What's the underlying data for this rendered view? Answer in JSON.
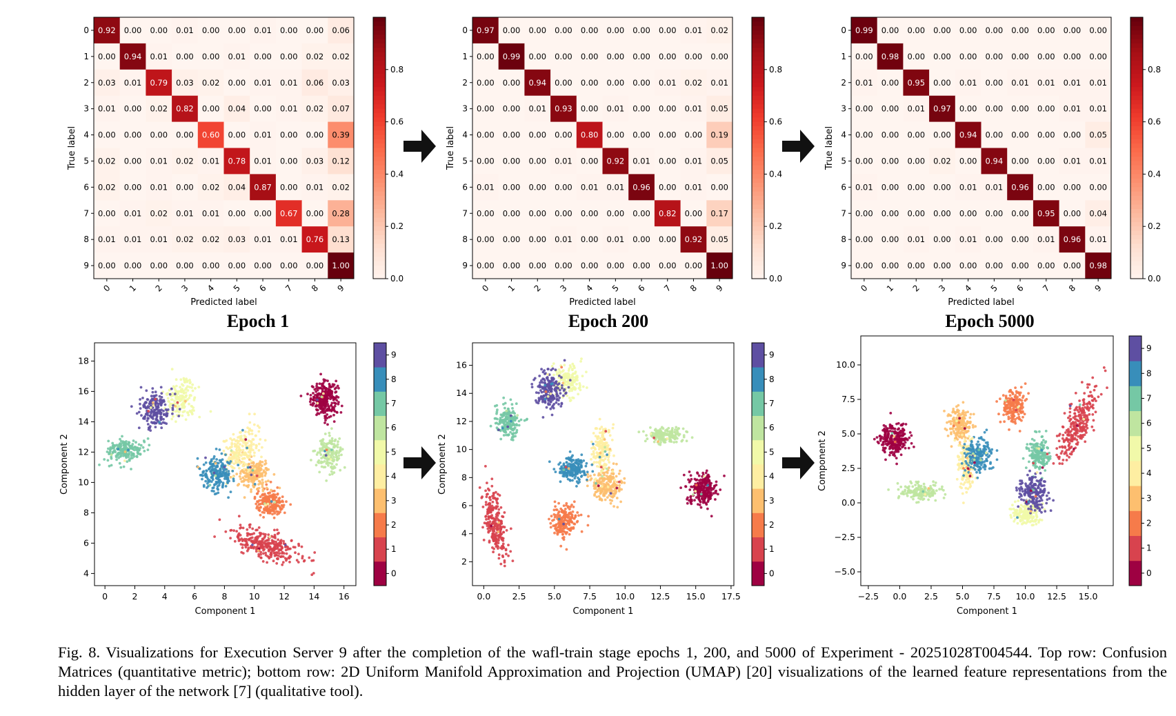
{
  "caption": "Fig. 8.  Visualizations for Execution Server 9 after the completion of the wafl-train stage epochs 1, 200, and 5000 of Experiment - 20251028T004544. Top row: Confusion Matrices (quantitative metric); bottom row: 2D Uniform Manifold Approximation and Projection (UMAP) [20] visualizations of the learned feature representations from the hidden layer of the network [7] (qualitative tool).",
  "colors": {
    "cm_scale": [
      "#fff5f0",
      "#fee0d2",
      "#fcbba1",
      "#fc9272",
      "#fb6a4a",
      "#ef3b2c",
      "#cb181d",
      "#a50f15",
      "#67000d"
    ],
    "umap_scale": [
      "#9e0142",
      "#d53e4f",
      "#f46d43",
      "#fdae61",
      "#fee08b",
      "#ffffbf",
      "#e6f598",
      "#abdda4",
      "#66c2a5",
      "#3288bd",
      "#5e4fa2"
    ],
    "arrow": "#111111"
  },
  "chart_data": [
    {
      "type": "heatmap",
      "title": "Epoch 1",
      "xlabel": "Predicted label",
      "ylabel": "True label",
      "labels": [
        "0",
        "1",
        "2",
        "3",
        "4",
        "5",
        "6",
        "7",
        "8",
        "9"
      ],
      "colorbar_ticks": [
        "0.0",
        "0.2",
        "0.4",
        "0.6",
        "0.8"
      ],
      "matrix": [
        [
          0.92,
          0.0,
          0.0,
          0.01,
          0.0,
          0.0,
          0.01,
          0.0,
          0.0,
          0.06
        ],
        [
          0.0,
          0.94,
          0.01,
          0.0,
          0.0,
          0.01,
          0.0,
          0.0,
          0.02,
          0.02
        ],
        [
          0.03,
          0.01,
          0.79,
          0.03,
          0.02,
          0.0,
          0.01,
          0.01,
          0.06,
          0.03
        ],
        [
          0.01,
          0.0,
          0.02,
          0.82,
          0.0,
          0.04,
          0.0,
          0.01,
          0.02,
          0.07
        ],
        [
          0.0,
          0.0,
          0.0,
          0.0,
          0.6,
          0.0,
          0.01,
          0.0,
          0.0,
          0.39
        ],
        [
          0.02,
          0.0,
          0.01,
          0.02,
          0.01,
          0.78,
          0.01,
          0.0,
          0.03,
          0.12
        ],
        [
          0.02,
          0.0,
          0.01,
          0.0,
          0.02,
          0.04,
          0.87,
          0.0,
          0.01,
          0.02
        ],
        [
          0.0,
          0.01,
          0.02,
          0.01,
          0.01,
          0.0,
          0.0,
          0.67,
          0.0,
          0.28
        ],
        [
          0.01,
          0.01,
          0.01,
          0.02,
          0.02,
          0.03,
          0.01,
          0.01,
          0.76,
          0.13
        ],
        [
          0.0,
          0.0,
          0.0,
          0.0,
          0.0,
          0.0,
          0.0,
          0.0,
          0.0,
          1.0
        ]
      ]
    },
    {
      "type": "heatmap",
      "title": "Epoch 200",
      "xlabel": "Predicted label",
      "ylabel": "True label",
      "labels": [
        "0",
        "1",
        "2",
        "3",
        "4",
        "5",
        "6",
        "7",
        "8",
        "9"
      ],
      "colorbar_ticks": [
        "0.0",
        "0.2",
        "0.4",
        "0.6",
        "0.8"
      ],
      "matrix": [
        [
          0.97,
          0.0,
          0.0,
          0.0,
          0.0,
          0.0,
          0.0,
          0.0,
          0.01,
          0.02
        ],
        [
          0.0,
          0.99,
          0.0,
          0.0,
          0.0,
          0.0,
          0.0,
          0.0,
          0.0,
          0.0
        ],
        [
          0.0,
          0.0,
          0.94,
          0.0,
          0.0,
          0.0,
          0.0,
          0.01,
          0.02,
          0.01
        ],
        [
          0.0,
          0.0,
          0.01,
          0.93,
          0.0,
          0.01,
          0.0,
          0.0,
          0.01,
          0.05
        ],
        [
          0.0,
          0.0,
          0.0,
          0.0,
          0.8,
          0.0,
          0.0,
          0.0,
          0.0,
          0.19
        ],
        [
          0.0,
          0.0,
          0.0,
          0.01,
          0.0,
          0.92,
          0.01,
          0.0,
          0.01,
          0.05
        ],
        [
          0.01,
          0.0,
          0.0,
          0.0,
          0.01,
          0.01,
          0.96,
          0.0,
          0.01,
          0.0
        ],
        [
          0.0,
          0.0,
          0.0,
          0.0,
          0.0,
          0.0,
          0.0,
          0.82,
          0.0,
          0.17
        ],
        [
          0.0,
          0.0,
          0.0,
          0.01,
          0.0,
          0.01,
          0.0,
          0.0,
          0.92,
          0.05
        ],
        [
          0.0,
          0.0,
          0.0,
          0.0,
          0.0,
          0.0,
          0.0,
          0.0,
          0.0,
          1.0
        ]
      ]
    },
    {
      "type": "heatmap",
      "title": "Epoch 5000",
      "xlabel": "Predicted label",
      "ylabel": "True label",
      "labels": [
        "0",
        "1",
        "2",
        "3",
        "4",
        "5",
        "6",
        "7",
        "8",
        "9"
      ],
      "colorbar_ticks": [
        "0.0",
        "0.2",
        "0.4",
        "0.6",
        "0.8"
      ],
      "matrix": [
        [
          0.99,
          0.0,
          0.0,
          0.0,
          0.0,
          0.0,
          0.0,
          0.0,
          0.0,
          0.0
        ],
        [
          0.0,
          0.98,
          0.0,
          0.0,
          0.0,
          0.0,
          0.0,
          0.0,
          0.0,
          0.0
        ],
        [
          0.01,
          0.0,
          0.95,
          0.0,
          0.01,
          0.0,
          0.01,
          0.01,
          0.01,
          0.01
        ],
        [
          0.0,
          0.0,
          0.01,
          0.97,
          0.0,
          0.0,
          0.0,
          0.0,
          0.01,
          0.01
        ],
        [
          0.0,
          0.0,
          0.0,
          0.0,
          0.94,
          0.0,
          0.0,
          0.0,
          0.0,
          0.05
        ],
        [
          0.0,
          0.0,
          0.0,
          0.02,
          0.0,
          0.94,
          0.0,
          0.0,
          0.01,
          0.01
        ],
        [
          0.01,
          0.0,
          0.0,
          0.0,
          0.01,
          0.01,
          0.96,
          0.0,
          0.0,
          0.0
        ],
        [
          0.0,
          0.0,
          0.0,
          0.0,
          0.0,
          0.0,
          0.0,
          0.95,
          0.0,
          0.04
        ],
        [
          0.0,
          0.0,
          0.01,
          0.0,
          0.01,
          0.0,
          0.0,
          0.01,
          0.96,
          0.01
        ],
        [
          0.0,
          0.0,
          0.0,
          0.0,
          0.0,
          0.0,
          0.0,
          0.0,
          0.0,
          0.98
        ]
      ]
    },
    {
      "type": "scatter",
      "xlabel": "Component 1",
      "ylabel": "Component 2",
      "xlim": [
        -0.7,
        16.8
      ],
      "ylim": [
        3.2,
        19.2
      ],
      "xticks": [
        0,
        2,
        4,
        6,
        8,
        10,
        12,
        14,
        16
      ],
      "yticks": [
        4,
        6,
        8,
        10,
        12,
        14,
        16,
        18
      ],
      "colorbar_ticks": [
        "0",
        "1",
        "2",
        "3",
        "4",
        "5",
        "6",
        "7",
        "8",
        "9"
      ],
      "clusters": [
        {
          "class": 0,
          "x": 14.7,
          "y": 15.5,
          "sx": 0.45,
          "sy": 0.55,
          "n": 280
        },
        {
          "class": 1,
          "x": 10.8,
          "y": 5.9,
          "sx": 1.2,
          "sy": 0.45,
          "n": 300,
          "rot": -18
        },
        {
          "class": 2,
          "x": 11.1,
          "y": 8.6,
          "sx": 0.5,
          "sy": 0.45,
          "n": 200
        },
        {
          "class": 3,
          "x": 10.0,
          "y": 10.5,
          "sx": 0.5,
          "sy": 0.5,
          "n": 200
        },
        {
          "class": 4,
          "x": 9.2,
          "y": 12.2,
          "sx": 0.55,
          "sy": 0.9,
          "n": 200,
          "rot": -35
        },
        {
          "class": 5,
          "x": 5.1,
          "y": 15.5,
          "sx": 0.55,
          "sy": 0.6,
          "n": 170
        },
        {
          "class": 6,
          "x": 15.0,
          "y": 11.9,
          "sx": 0.45,
          "sy": 0.55,
          "n": 160
        },
        {
          "class": 7,
          "x": 1.4,
          "y": 12.1,
          "sx": 0.6,
          "sy": 0.4,
          "n": 190
        },
        {
          "class": 8,
          "x": 7.5,
          "y": 10.6,
          "sx": 0.55,
          "sy": 0.55,
          "n": 200
        },
        {
          "class": 9,
          "x": 3.3,
          "y": 14.8,
          "sx": 0.5,
          "sy": 0.6,
          "n": 200
        }
      ]
    },
    {
      "type": "scatter",
      "xlabel": "Component 1",
      "ylabel": "Component 2",
      "xlim": [
        -0.8,
        17.7
      ],
      "ylim": [
        0.3,
        17.6
      ],
      "xticks": [
        0.0,
        2.5,
        5.0,
        7.5,
        10.0,
        12.5,
        15.0,
        17.5
      ],
      "yticks": [
        2,
        4,
        6,
        8,
        10,
        12,
        14,
        16
      ],
      "colorbar_ticks": [
        "0",
        "1",
        "2",
        "3",
        "4",
        "5",
        "6",
        "7",
        "8",
        "9"
      ],
      "clusters": [
        {
          "class": 0,
          "x": 15.5,
          "y": 7.2,
          "sx": 0.5,
          "sy": 0.55,
          "n": 250
        },
        {
          "class": 1,
          "x": 0.8,
          "y": 4.6,
          "sx": 0.35,
          "sy": 1.3,
          "n": 260,
          "rot": 12
        },
        {
          "class": 2,
          "x": 5.7,
          "y": 4.9,
          "sx": 0.45,
          "sy": 0.55,
          "n": 200
        },
        {
          "class": 3,
          "x": 8.7,
          "y": 7.5,
          "sx": 0.55,
          "sy": 0.55,
          "n": 200
        },
        {
          "class": 4,
          "x": 8.4,
          "y": 10.0,
          "sx": 0.35,
          "sy": 0.9,
          "n": 170
        },
        {
          "class": 5,
          "x": 5.9,
          "y": 14.9,
          "sx": 0.5,
          "sy": 0.6,
          "n": 170
        },
        {
          "class": 6,
          "x": 12.8,
          "y": 11.0,
          "sx": 0.7,
          "sy": 0.3,
          "n": 160
        },
        {
          "class": 7,
          "x": 1.7,
          "y": 12.0,
          "sx": 0.45,
          "sy": 0.6,
          "n": 190
        },
        {
          "class": 8,
          "x": 6.3,
          "y": 8.6,
          "sx": 0.5,
          "sy": 0.45,
          "n": 200
        },
        {
          "class": 9,
          "x": 4.6,
          "y": 14.2,
          "sx": 0.45,
          "sy": 0.65,
          "n": 200
        }
      ]
    },
    {
      "type": "scatter",
      "xlabel": "Component 1",
      "ylabel": "Component 2",
      "xlim": [
        -3.1,
        17.0
      ],
      "ylim": [
        -6.0,
        12.1
      ],
      "xticks": [
        -2.5,
        0.0,
        2.5,
        5.0,
        7.5,
        10.0,
        12.5,
        15.0
      ],
      "yticks": [
        -5.0,
        -2.5,
        0.0,
        2.5,
        5.0,
        7.5,
        10.0
      ],
      "colorbar_ticks": [
        "0",
        "1",
        "2",
        "3",
        "4",
        "5",
        "6",
        "7",
        "8",
        "9"
      ],
      "clusters": [
        {
          "class": 0,
          "x": -0.4,
          "y": 4.6,
          "sx": 0.6,
          "sy": 0.55,
          "n": 250
        },
        {
          "class": 1,
          "x": 14.2,
          "y": 5.7,
          "sx": 0.45,
          "sy": 1.4,
          "n": 260,
          "rot": -28
        },
        {
          "class": 2,
          "x": 9.0,
          "y": 7.0,
          "sx": 0.45,
          "sy": 0.6,
          "n": 200
        },
        {
          "class": 3,
          "x": 4.8,
          "y": 5.6,
          "sx": 0.45,
          "sy": 0.6,
          "n": 200
        },
        {
          "class": 4,
          "x": 5.3,
          "y": 2.6,
          "sx": 0.35,
          "sy": 0.9,
          "n": 180
        },
        {
          "class": 5,
          "x": 10.1,
          "y": -0.8,
          "sx": 0.55,
          "sy": 0.45,
          "n": 170
        },
        {
          "class": 6,
          "x": 1.6,
          "y": 0.8,
          "sx": 0.8,
          "sy": 0.3,
          "n": 160
        },
        {
          "class": 7,
          "x": 11.1,
          "y": 3.5,
          "sx": 0.45,
          "sy": 0.6,
          "n": 190
        },
        {
          "class": 8,
          "x": 6.2,
          "y": 3.4,
          "sx": 0.55,
          "sy": 0.6,
          "n": 200
        },
        {
          "class": 9,
          "x": 10.6,
          "y": 0.7,
          "sx": 0.55,
          "sy": 0.7,
          "n": 200
        }
      ]
    }
  ]
}
